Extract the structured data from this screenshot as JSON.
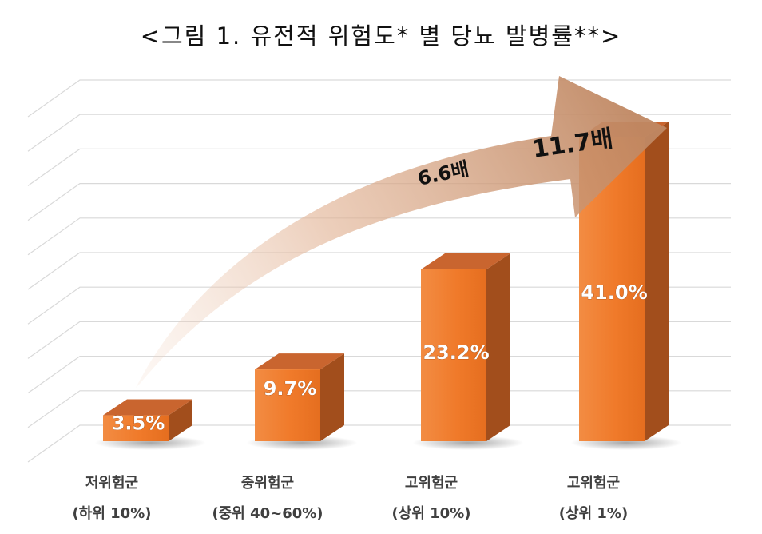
{
  "chart_data": {
    "type": "bar",
    "title": "<그림 1. 유전적 위험도* 별 당뇨 발병률**>",
    "categories": [
      "저위험군",
      "중위험군",
      "고위험군",
      "고위험군"
    ],
    "category_sublabels": [
      "(하위 10%)",
      "(중위 40~60%)",
      "(상위 10%)",
      "(상위 1%)"
    ],
    "series": [
      {
        "values": [
          3.5,
          9.7,
          23.2,
          41.0
        ]
      }
    ],
    "data_labels": [
      "3.5%",
      "9.7%",
      "23.2%",
      "41.0%"
    ],
    "ylim": [
      0,
      45
    ],
    "grid": true,
    "annotations": [
      "6.6배",
      "11.7배"
    ],
    "colors": {
      "bar_front": "#f07a2a",
      "bar_top": "#c9652f",
      "bar_side": "#a24e1c",
      "arrow": "#c9916d",
      "grid": "#d9d9d9",
      "data_label": "#ffffff"
    }
  }
}
